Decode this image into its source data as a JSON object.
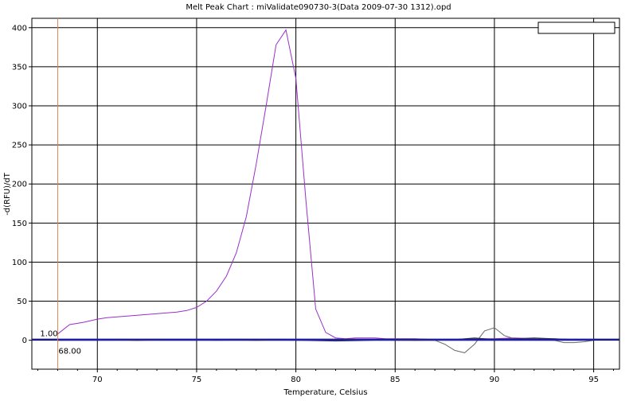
{
  "chart_data": {
    "type": "line",
    "title": "Melt Peak Chart : miValidate090730-3(Data 2009-07-30 1312).opd",
    "xlabel": "Temperature, Celsius",
    "ylabel": "-d(RFU)/dT",
    "xlim": [
      66.7,
      96.3
    ],
    "ylim": [
      -37,
      412
    ],
    "xticks": [
      70,
      75,
      80,
      85,
      90,
      95
    ],
    "yticks": [
      0,
      50,
      100,
      150,
      200,
      250,
      300,
      350,
      400
    ],
    "grid": true,
    "legend": {
      "position": "top-right",
      "entries": []
    },
    "threshold": {
      "value": 1.0,
      "label": "1.00",
      "color": "#1f1fa0"
    },
    "marker": {
      "x": 68.0,
      "label": "68.00",
      "color": "#e08050"
    },
    "series": [
      {
        "color": "#9a30c8",
        "x": [
          68.0,
          68.6,
          69.3,
          70.0,
          70.5,
          71.0,
          71.5,
          72.0,
          72.5,
          73.0,
          73.5,
          74.0,
          74.5,
          75.0,
          75.5,
          76.0,
          76.5,
          77.0,
          77.5,
          78.0,
          78.5,
          79.0,
          79.5,
          80.0,
          80.5,
          81.0,
          81.5,
          82.0,
          82.5,
          83.0,
          83.5,
          84.0,
          84.5,
          85.0,
          86.0,
          87.0,
          88.0,
          89.0,
          90.0,
          91.0,
          92.0,
          93.0,
          94.0,
          95.0
        ],
        "y": [
          8,
          20,
          23,
          27,
          29,
          30,
          31,
          32,
          33,
          34,
          35,
          36,
          38,
          42,
          50,
          63,
          82,
          112,
          158,
          225,
          300,
          378,
          397,
          335,
          180,
          40,
          10,
          3,
          2,
          3,
          3,
          3,
          2,
          2,
          2,
          1,
          1,
          2,
          2,
          3,
          2,
          2,
          1,
          1
        ]
      },
      {
        "color": "#6a6a6a",
        "x": [
          68.0,
          70.0,
          72.0,
          74.0,
          76.0,
          78.0,
          80.0,
          82.0,
          84.0,
          85.0,
          86.0,
          87.0,
          87.5,
          88.0,
          88.5,
          89.0,
          89.5,
          90.0,
          90.5,
          91.0,
          92.0,
          93.0,
          93.5,
          94.0,
          94.5,
          95.0
        ],
        "y": [
          0,
          1,
          0,
          1,
          0,
          1,
          0,
          0,
          1,
          0,
          0,
          0,
          -5,
          -13,
          -16,
          -5,
          12,
          16,
          6,
          2,
          1,
          0,
          -3,
          -3,
          -2,
          0
        ]
      },
      {
        "color": "#2020b0",
        "x": [
          68.0,
          70.0,
          72.0,
          74.0,
          76.0,
          78.0,
          80.0,
          82.0,
          84.0,
          86.0,
          88.0,
          90.0,
          92.0,
          94.0,
          95.0
        ],
        "y": [
          0,
          0,
          0,
          0,
          0,
          0,
          0,
          -1,
          0,
          0,
          0,
          0,
          0,
          0,
          0
        ]
      },
      {
        "color": "#303030",
        "x": [
          68.0,
          70.0,
          72.0,
          74.0,
          76.0,
          78.0,
          80.0,
          82.0,
          84.0,
          86.0,
          88.0,
          89.0,
          90.0,
          91.0,
          92.0,
          93.0,
          94.0,
          95.0
        ],
        "y": [
          1,
          1,
          0,
          1,
          1,
          0,
          1,
          0,
          1,
          0,
          1,
          3,
          1,
          2,
          3,
          2,
          1,
          1
        ]
      }
    ]
  }
}
